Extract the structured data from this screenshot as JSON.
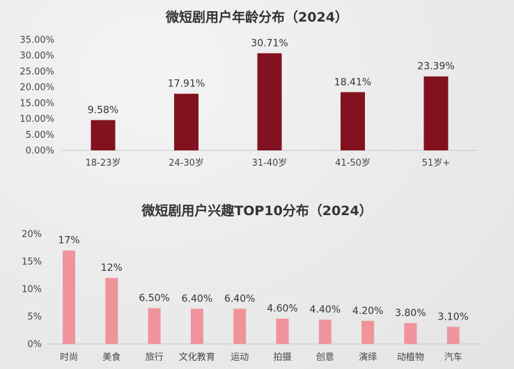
{
  "chart_data": [
    {
      "type": "bar",
      "title": "微短剧用户年龄分布（2024）",
      "categories": [
        "18-23岁",
        "24-30岁",
        "31-40岁",
        "41-50岁",
        "51岁+"
      ],
      "values": [
        9.58,
        17.91,
        30.71,
        18.41,
        23.39
      ],
      "value_labels": [
        "9.58%",
        "17.91%",
        "30.71%",
        "18.41%",
        "23.39%"
      ],
      "ylim": [
        0,
        35
      ],
      "yticks": [
        0,
        5,
        10,
        15,
        20,
        25,
        30,
        35
      ],
      "ytick_labels": [
        "0.00%",
        "5.00%",
        "10.00%",
        "15.00%",
        "20.00%",
        "25.00%",
        "30.00%",
        "35.00%"
      ],
      "color": "#82121f",
      "grid": false
    },
    {
      "type": "bar",
      "title": "微短剧用户兴趣TOP10分布（2024）",
      "categories": [
        "时尚",
        "美食",
        "旅行",
        "文化教育",
        "运动",
        "拍摄",
        "创意",
        "演绎",
        "动植物",
        "汽车"
      ],
      "values": [
        17,
        12,
        6.5,
        6.4,
        6.4,
        4.6,
        4.4,
        4.2,
        3.8,
        3.1
      ],
      "value_labels": [
        "17%",
        "12%",
        "6.50%",
        "6.40%",
        "6.40%",
        "4.60%",
        "4.40%",
        "4.20%",
        "3.80%",
        "3.10%"
      ],
      "ylim": [
        0,
        20
      ],
      "yticks": [
        0,
        5,
        10,
        15,
        20
      ],
      "ytick_labels": [
        "0%",
        "5%",
        "10%",
        "15%",
        "20%"
      ],
      "color": "#f0949c",
      "grid": false
    }
  ]
}
